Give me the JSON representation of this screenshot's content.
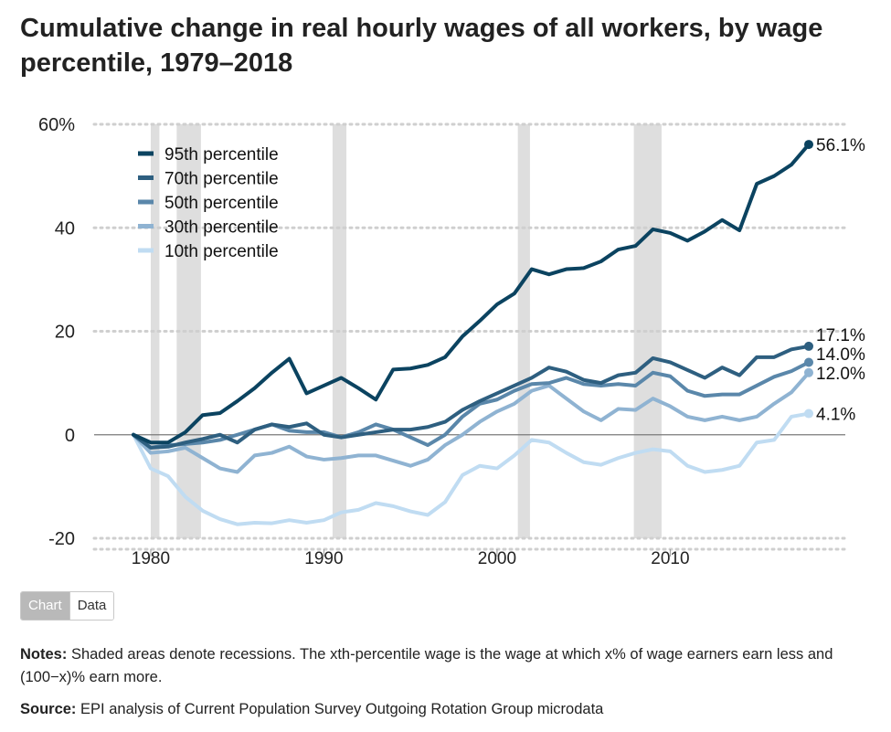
{
  "title": "Cumulative change in real hourly wages of all workers, by wage percentile, 1979–2018",
  "toggle": {
    "chart_label": "Chart",
    "data_label": "Data",
    "active": "Chart"
  },
  "notes": {
    "label": "Notes:",
    "text": "Shaded areas denote recessions. The xth-percentile wage is the wage at which x% of wage earners earn less and (100−x)% earn more."
  },
  "source": {
    "label": "Source:",
    "text": "EPI analysis of Current Population Survey Outgoing Rotation Group microdata"
  },
  "chart_data": {
    "type": "line",
    "x": [
      1979,
      1980,
      1981,
      1982,
      1983,
      1984,
      1985,
      1986,
      1987,
      1988,
      1989,
      1990,
      1991,
      1992,
      1993,
      1994,
      1995,
      1996,
      1997,
      1998,
      1999,
      2000,
      2001,
      2002,
      2003,
      2004,
      2005,
      2006,
      2007,
      2008,
      2009,
      2010,
      2011,
      2012,
      2013,
      2014,
      2015,
      2016,
      2017,
      2018
    ],
    "series": [
      {
        "name": "95th percentile",
        "color": "#0b4360",
        "end_label": "56.1%",
        "values": [
          0,
          -1.5,
          -1.5,
          0.5,
          3.8,
          4.2,
          6.5,
          9,
          12,
          14.7,
          8,
          9.5,
          11,
          9,
          6.8,
          12.6,
          12.8,
          13.5,
          15,
          19,
          22,
          25.2,
          27.3,
          32,
          31,
          32,
          32.2,
          33.5,
          35.8,
          36.5,
          39.7,
          39,
          37.5,
          39.3,
          41.5,
          39.5,
          48.5,
          50,
          52.2,
          56.1
        ]
      },
      {
        "name": "70th percentile",
        "color": "#2e5f80",
        "end_label": "17.1%",
        "values": [
          0,
          -2.5,
          -2.3,
          -1.5,
          -0.8,
          0,
          -1.5,
          1,
          2,
          1.5,
          2.2,
          0,
          -0.5,
          0,
          0.5,
          1,
          1,
          1.5,
          2.5,
          4.8,
          6.5,
          8,
          9.5,
          11,
          13,
          12.2,
          10.6,
          10,
          11.5,
          12,
          14.8,
          14,
          12.5,
          11,
          13,
          11.5,
          15,
          15,
          16.5,
          17.1
        ]
      },
      {
        "name": "50th percentile",
        "color": "#5a87aa",
        "end_label": "14.0%",
        "values": [
          0,
          -2.5,
          -2,
          -1.8,
          -1.5,
          -1,
          0,
          1,
          2,
          0.8,
          0.5,
          0.5,
          -0.5,
          0.5,
          2,
          1,
          -0.5,
          -2,
          0,
          3.5,
          6,
          6.8,
          8.5,
          9.8,
          10,
          11,
          9.8,
          9.5,
          9.8,
          9.5,
          12,
          11.3,
          8.5,
          7.5,
          7.8,
          7.8,
          9.5,
          11.2,
          12.3,
          14.0
        ]
      },
      {
        "name": "30th percentile",
        "color": "#8fb3d2",
        "end_label": "12.0%",
        "values": [
          0,
          -3.5,
          -3.2,
          -2.5,
          -4.5,
          -6.5,
          -7.2,
          -4,
          -3.5,
          -2.3,
          -4.2,
          -4.8,
          -4.5,
          -4,
          -4,
          -5,
          -6,
          -4.8,
          -2,
          0,
          2.5,
          4.5,
          6,
          8.5,
          9.5,
          7,
          4.5,
          2.8,
          5,
          4.8,
          7,
          5.5,
          3.5,
          2.8,
          3.5,
          2.8,
          3.5,
          6,
          8.2,
          12.0
        ]
      },
      {
        "name": "10th percentile",
        "color": "#c0dcf2",
        "end_label": "4.1%",
        "values": [
          0,
          -6.5,
          -8,
          -12,
          -14.7,
          -16.3,
          -17.3,
          -17,
          -17.1,
          -16.5,
          -17,
          -16.5,
          -15,
          -14.5,
          -13.2,
          -13.8,
          -14.8,
          -15.5,
          -13,
          -7.8,
          -6,
          -6.5,
          -4,
          -1,
          -1.5,
          -3.5,
          -5.3,
          -5.8,
          -4.5,
          -3.5,
          -2.8,
          -3.2,
          -6,
          -7.2,
          -6.8,
          -6,
          -1.5,
          -1,
          3.5,
          4.1
        ]
      }
    ],
    "recessions": [
      [
        1980.0,
        1980.5
      ],
      [
        1981.5,
        1982.9
      ],
      [
        1990.5,
        1991.3
      ],
      [
        2001.2,
        2001.9
      ],
      [
        2007.9,
        2009.5
      ]
    ],
    "xticks": [
      1980,
      1990,
      2000,
      2010
    ],
    "yticks": [
      -20,
      0,
      20,
      40,
      60
    ],
    "ytick_labels": [
      "-20",
      "0",
      "20",
      "40",
      "60%"
    ],
    "xlim": [
      1979,
      2019
    ],
    "ylim": [
      -20,
      60
    ],
    "xlabel": "",
    "ylabel": "",
    "grid": true,
    "legend": "top-left"
  }
}
